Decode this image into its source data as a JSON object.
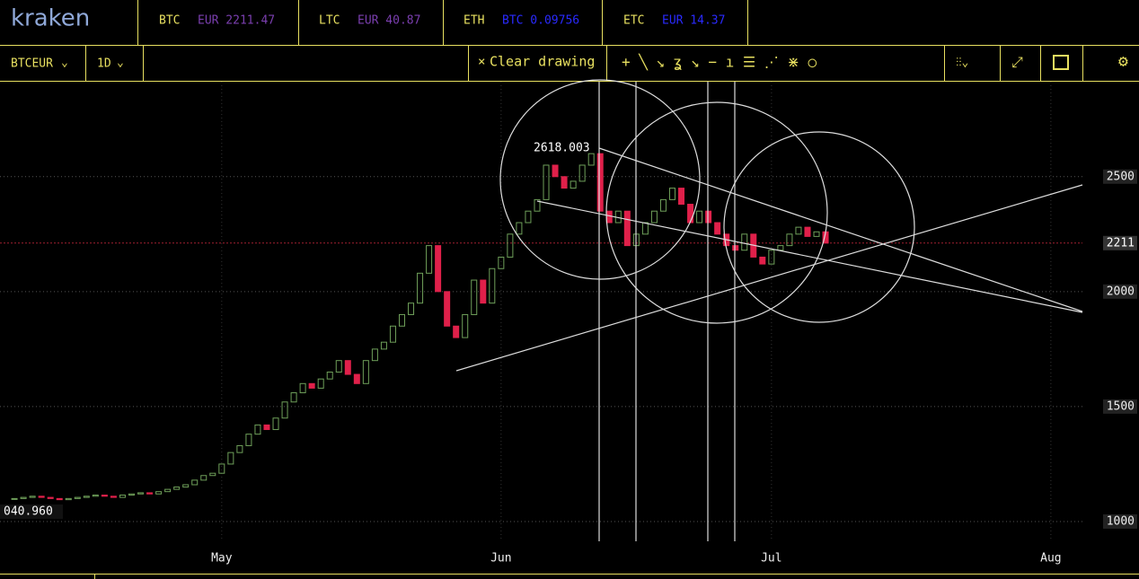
{
  "header": {
    "logo": "kraken",
    "tickers": [
      {
        "symbol": "BTC",
        "price": "EUR 2211.47",
        "color": "#7b3fb0"
      },
      {
        "symbol": "LTC",
        "price": "EUR 40.87",
        "color": "#7b3fb0"
      },
      {
        "symbol": "ETH",
        "price": "BTC 0.09756",
        "color": "#2a2aff"
      },
      {
        "symbol": "ETC",
        "price": "EUR 14.37",
        "color": "#2a2aff"
      }
    ]
  },
  "toolbar": {
    "pair": "BTCEUR",
    "interval": "1D",
    "clear": "Clear drawing"
  },
  "chart_data": {
    "type": "candlestick",
    "values": [
      1100,
      1105,
      1110,
      1105,
      1100,
      1095,
      1100,
      1105,
      1110,
      1115,
      1110,
      1105,
      1115,
      1120,
      1125,
      1120,
      1130,
      1140,
      1150,
      1160,
      1180,
      1200,
      1210,
      1250,
      1300,
      1330,
      1380,
      1420,
      1400,
      1450,
      1520,
      1560,
      1600,
      1580,
      1620,
      1650,
      1700,
      1640,
      1600,
      1700,
      1750,
      1780,
      1850,
      1900,
      1950,
      2080,
      2200,
      2000,
      1850,
      1800,
      1900,
      2050,
      1950,
      2100,
      2150,
      2250,
      2300,
      2350,
      2400,
      2550,
      2500,
      2450,
      2480,
      2550,
      2600,
      2350,
      2300,
      2350,
      2200,
      2250,
      2300,
      2350,
      2400,
      2450,
      2380,
      2300,
      2350,
      2300,
      2250,
      2200,
      2180,
      2250,
      2150,
      2120,
      2180,
      2200,
      2250,
      2280,
      2240,
      2260,
      2211
    ],
    "up_color": "#6fa05a",
    "down_color": "#e0204a",
    "xlim": [
      -1.6,
      118.5
    ],
    "xticks": [
      {
        "value": 23,
        "label": "May"
      },
      {
        "value": 54,
        "label": "Jun"
      },
      {
        "value": 84,
        "label": "Jul"
      },
      {
        "value": 115,
        "label": "Aug"
      }
    ],
    "ylim": [
      914,
      2913
    ],
    "yticks": [
      1000,
      1500,
      2000,
      2500
    ],
    "last_price": 2211,
    "annotations": [
      "2618.003",
      "040.960"
    ],
    "grid": true
  }
}
